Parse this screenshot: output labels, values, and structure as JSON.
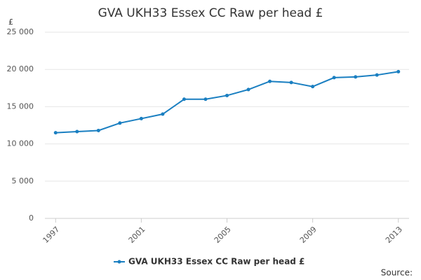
{
  "chart_data": {
    "type": "line",
    "title": "GVA UKH33 Essex CC Raw per head £",
    "y_label": "£",
    "source": "Source:",
    "x": [
      1997,
      1998,
      1999,
      2000,
      2001,
      2002,
      2003,
      2004,
      2005,
      2006,
      2007,
      2008,
      2009,
      2010,
      2011,
      2012,
      2013
    ],
    "series": [
      {
        "name": "GVA UKH33 Essex CC Raw per head £",
        "color": "#1a7fc1",
        "values": [
          11500,
          11650,
          11800,
          12800,
          13400,
          14000,
          16000,
          16000,
          16500,
          17300,
          18400,
          18250,
          17700,
          18900,
          19000,
          19250,
          19700
        ]
      }
    ],
    "xlim": [
      1996.5,
      2013.5
    ],
    "xticks": [
      1997,
      2001,
      2005,
      2009,
      2013
    ],
    "ylim": [
      0,
      25000
    ],
    "yticks": [
      0,
      {
        "value": 5000,
        "label": "5 000"
      },
      {
        "value": 10000,
        "label": "10 000"
      },
      {
        "value": 15000,
        "label": "15 000"
      },
      {
        "value": 20000,
        "label": "20 000"
      },
      {
        "value": 25000,
        "label": "25 000"
      }
    ],
    "grid": true,
    "legend": "bottom"
  }
}
